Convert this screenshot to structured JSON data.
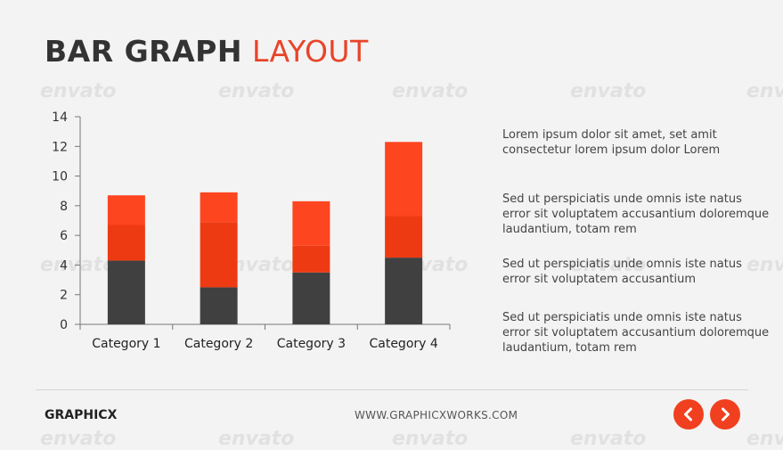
{
  "slide": {
    "title_bold": "BAR GRAPH",
    "title_light": "LAYOUT",
    "brand": "GRAPHICX",
    "website": "WWW.GRAPHICXWORKS.COM",
    "watermark": "envato",
    "colors": {
      "accent": "#e8442a",
      "bar_dark": "#404040",
      "bar_red": "#ee3a12",
      "bar_orange": "#fd4520",
      "button": "#f0401f"
    }
  },
  "paragraphs": [
    "Lorem ipsum dolor sit amet, set amit consectetur lorem ipsum dolor  Lorem",
    "Sed ut perspiciatis unde omnis iste natus error sit voluptatem accusantium doloremque laudantium, totam rem",
    "Sed ut perspiciatis unde omnis iste natus error sit voluptatem accusantium",
    "Sed ut perspiciatis unde omnis iste natus error sit voluptatem accusantium doloremque laudantium, totam rem"
  ],
  "nav": {
    "prev_icon": "chevron-left-icon",
    "next_icon": "chevron-right-icon"
  },
  "chart_data": {
    "type": "bar",
    "stacked": true,
    "categories": [
      "Category 1",
      "Category 2",
      "Category 3",
      "Category 4"
    ],
    "series": [
      {
        "values": [
          4.3,
          2.5,
          3.5,
          4.5
        ],
        "color": "#404040"
      },
      {
        "values": [
          2.4,
          4.4,
          1.8,
          2.8
        ],
        "color": "#ee3a12"
      },
      {
        "values": [
          2.0,
          2.0,
          3.0,
          5.0
        ],
        "color": "#fd4520"
      }
    ],
    "ylim": [
      0,
      14
    ],
    "yticks": [
      0,
      2,
      4,
      6,
      8,
      10,
      12,
      14
    ],
    "title": "",
    "xlabel": "",
    "ylabel": "",
    "grid": false,
    "legend": "none"
  }
}
